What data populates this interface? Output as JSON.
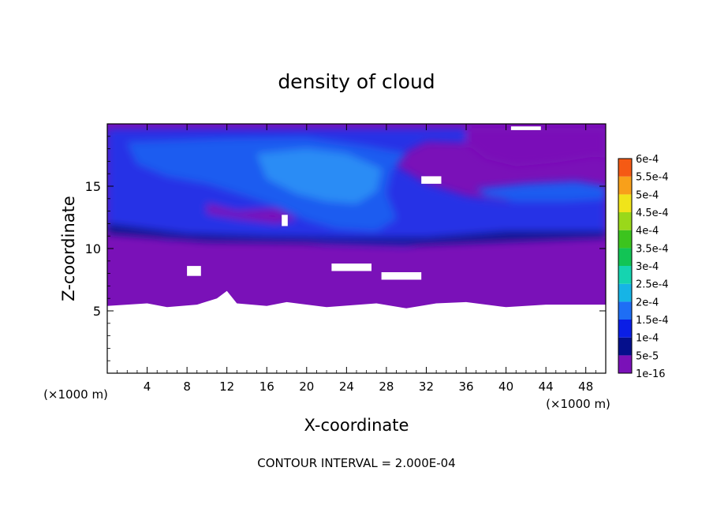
{
  "chart_data": {
    "type": "heatmap",
    "title": "density of cloud",
    "xlabel": "X-coordinate",
    "ylabel": "Z-coordinate",
    "x_unit_left": "(×1000 m)",
    "x_unit_right": "(×1000 m)",
    "footer": "CONTOUR INTERVAL = 2.000E-04",
    "xlim": [
      0,
      50
    ],
    "ylim": [
      0,
      20
    ],
    "x_ticks": [
      4,
      8,
      12,
      16,
      20,
      24,
      28,
      32,
      36,
      40,
      44,
      48
    ],
    "y_ticks": [
      5,
      10,
      15
    ],
    "colorbar": {
      "levels": [
        "1e-16",
        "5e-5",
        "1e-4",
        "1.5e-4",
        "2e-4",
        "2.5e-4",
        "3e-4",
        "3.5e-4",
        "4e-4",
        "4.5e-4",
        "5e-4",
        "5.5e-4",
        "6e-4"
      ],
      "colors": [
        "#7a11b8",
        "#050f8c",
        "#0a1ee6",
        "#1e6ef5",
        "#16b4e6",
        "#15d4b0",
        "#12c455",
        "#3cc41e",
        "#9ad81a",
        "#f0e41a",
        "#f8a01a",
        "#f55a14",
        "#f51e1e",
        "#f58080"
      ]
    },
    "field_colors": {
      "background": "#7a11b8",
      "low": "#2833e6",
      "mid": "#1f5cf0",
      "high": "#2a8cf5",
      "dark": "#0c148c",
      "missing": "#ffffff"
    },
    "regions": {
      "no_data_below_z": 5.5,
      "upper_cloud_z": [
        10.5,
        19.5
      ],
      "peak_center": [
        22,
        15.5
      ]
    }
  }
}
